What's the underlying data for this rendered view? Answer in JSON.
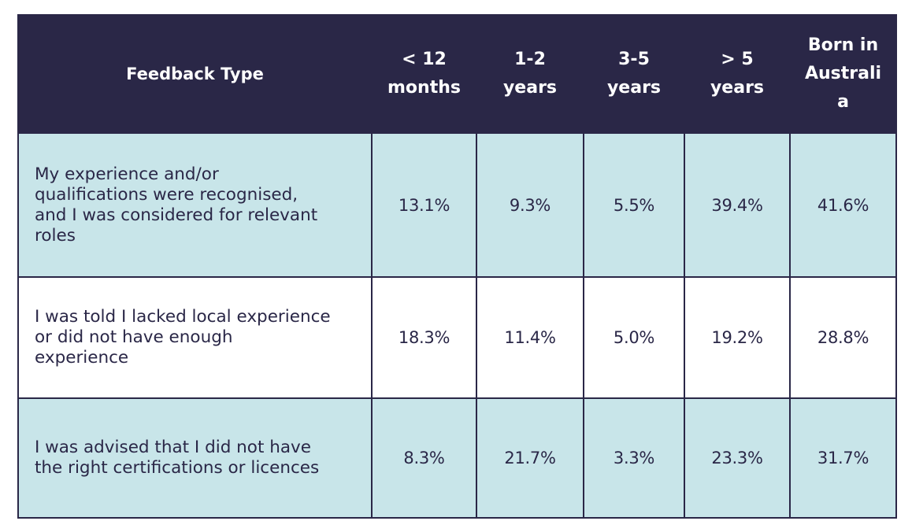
{
  "table": {
    "headers": [
      {
        "key": "type",
        "lines": [
          "Feedback Type"
        ]
      },
      {
        "key": "lt12",
        "lines": [
          "< 12",
          "months"
        ]
      },
      {
        "key": "y12",
        "lines": [
          "1-2",
          "years"
        ]
      },
      {
        "key": "y35",
        "lines": [
          "3-5",
          "years"
        ]
      },
      {
        "key": "gt5",
        "lines": [
          "> 5",
          "years"
        ]
      },
      {
        "key": "aus",
        "lines": [
          "Born in",
          "Australi",
          "a"
        ]
      }
    ],
    "rows": [
      {
        "label_lines": [
          "My experience and/or",
          "qualifications were recognised,",
          "and I was considered for relevant",
          "roles"
        ],
        "values": [
          "13.1%",
          "9.3%",
          "5.5%",
          "39.4%",
          "41.6%"
        ]
      },
      {
        "label_lines": [
          "I was told I lacked local experience",
          "or did not have enough",
          "experience"
        ],
        "values": [
          "18.3%",
          "11.4%",
          "5.0%",
          "19.2%",
          "28.8%"
        ]
      },
      {
        "label_lines": [
          "I was advised that I did not have",
          "the right certifications or licences"
        ],
        "values": [
          "8.3%",
          "21.7%",
          "3.3%",
          "23.3%",
          "31.7%"
        ]
      }
    ]
  },
  "colors": {
    "header_bg": "#2a2747",
    "header_text": "#ffffff",
    "shaded_row": "#c8e5e9",
    "plain_row": "#ffffff",
    "text": "#2a2747"
  }
}
